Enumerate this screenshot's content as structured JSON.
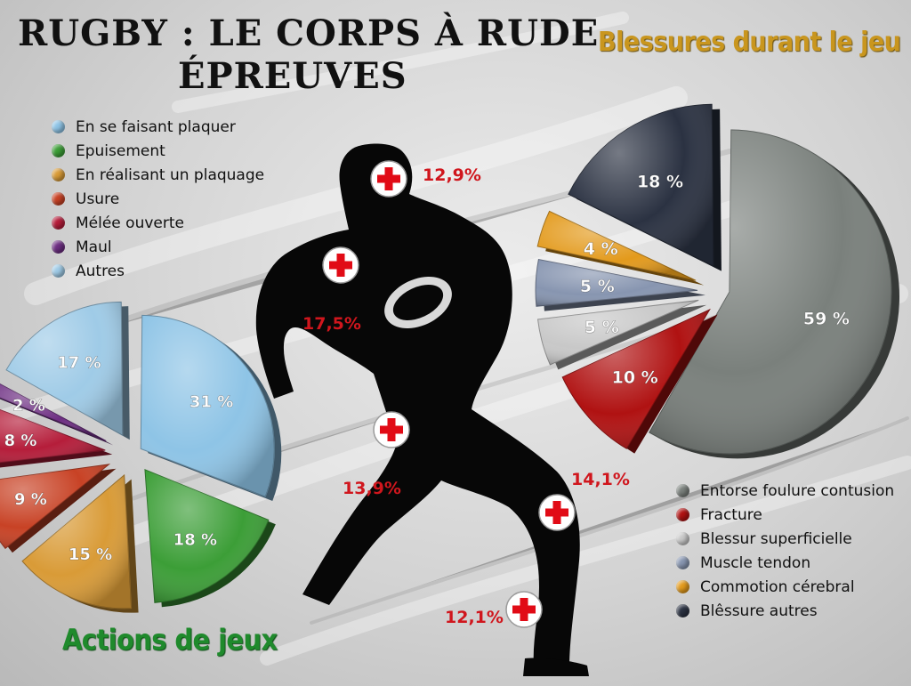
{
  "title_line1": "RUGBY : LE CORPS À RUDE",
  "title_line2": "ÉPREUVES",
  "chart_data": [
    {
      "type": "pie",
      "title": "Blessures durant le jeu",
      "categories": [
        "Entorse foulure contusion",
        "Fracture",
        "Blessur superficielle",
        "Muscle tendon",
        "Commotion cérebral",
        "Blêssure autres"
      ],
      "values": [
        59,
        10,
        5,
        5,
        4,
        18
      ],
      "value_labels": [
        "59 %",
        "10 %",
        "5 %",
        "5 %",
        "4 %",
        "18 %"
      ],
      "colors": [
        "#7a807c",
        "#b01212",
        "#c8c8c8",
        "#8795b0",
        "#e39a1c",
        "#2b3242"
      ],
      "legend_position": "bottom-right"
    },
    {
      "type": "pie",
      "title": "Actions de jeux",
      "categories": [
        "En se faisant plaquer",
        "Epuisement",
        "En réalisant un plaquage",
        "Usure",
        "Mélée ouverte",
        "Maul",
        "Autres"
      ],
      "values": [
        31,
        18,
        15,
        9,
        8,
        2,
        17
      ],
      "value_labels": [
        "31 %",
        "18 %",
        "15 %",
        "9 %",
        "8 %",
        "2 %",
        "17 %"
      ],
      "colors": [
        "#8ec4e6",
        "#3c9e37",
        "#d99b37",
        "#c84225",
        "#b51d3a",
        "#6d2e82",
        "#9fcbe7"
      ],
      "legend_position": "top-left"
    }
  ],
  "body_injuries": [
    {
      "part": "tête",
      "value": "12,9%"
    },
    {
      "part": "épaule",
      "value": "17,5%"
    },
    {
      "part": "cuisse",
      "value": "13,9%"
    },
    {
      "part": "genou",
      "value": "14,1%"
    },
    {
      "part": "cheville",
      "value": "12,1%"
    }
  ]
}
